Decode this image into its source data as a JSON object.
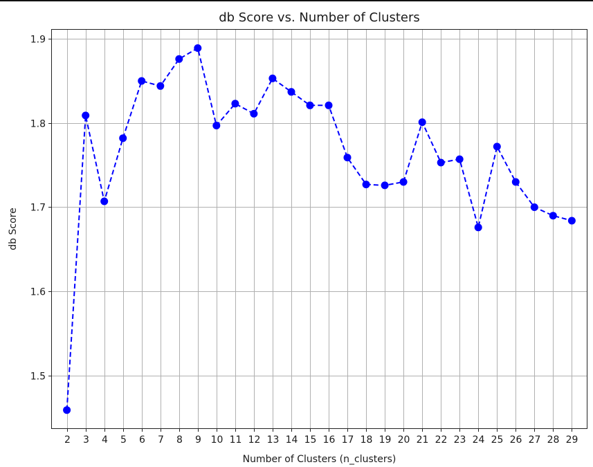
{
  "chart_data": {
    "type": "line",
    "title": "db Score vs. Number of Clusters",
    "xlabel": "Number of Clusters (n_clusters)",
    "ylabel": "db Score",
    "x": [
      2,
      3,
      4,
      5,
      6,
      7,
      8,
      9,
      10,
      11,
      12,
      13,
      14,
      15,
      16,
      17,
      18,
      19,
      20,
      21,
      22,
      23,
      24,
      25,
      26,
      27,
      28,
      29
    ],
    "series": [
      {
        "values": [
          1.459,
          1.809,
          1.707,
          1.782,
          1.85,
          1.844,
          1.876,
          1.889,
          1.797,
          1.823,
          1.811,
          1.853,
          1.837,
          1.821,
          1.821,
          1.759,
          1.727,
          1.726,
          1.73,
          1.801,
          1.753,
          1.757,
          1.676,
          1.772,
          1.73,
          1.7,
          1.69,
          1.684
        ],
        "color": "#0000ff",
        "line_style": "dashed",
        "marker": "circle"
      }
    ],
    "xticks": [
      "2",
      "3",
      "4",
      "5",
      "6",
      "7",
      "8",
      "9",
      "10",
      "11",
      "12",
      "13",
      "14",
      "15",
      "16",
      "17",
      "18",
      "19",
      "20",
      "21",
      "22",
      "23",
      "24",
      "25",
      "26",
      "27",
      "28",
      "29"
    ],
    "yticks": [
      "1.5",
      "1.6",
      "1.7",
      "1.8",
      "1.9"
    ],
    "ytick_values": [
      1.5,
      1.6,
      1.7,
      1.8,
      1.9
    ],
    "xlim": [
      1.2,
      29.8
    ],
    "ylim": [
      1.4374,
      1.9108
    ],
    "grid": true
  }
}
